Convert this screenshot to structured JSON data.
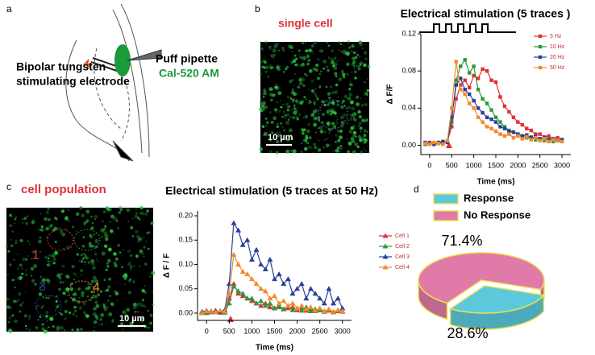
{
  "panels": {
    "a": {
      "label": "a",
      "electrode": [
        "Bipolar tungsten",
        "stimulating electrode"
      ],
      "pipette": "Puff pipette",
      "dye": "Cal-520 AM"
    },
    "b": {
      "label": "b",
      "caption": "single cell",
      "scale": "10 µm"
    },
    "c": {
      "label": "c",
      "caption": "cell population",
      "scale": "10 µm",
      "cells": [
        "1",
        "2",
        "3",
        "4"
      ]
    },
    "d": {
      "label": "d"
    }
  },
  "chart_data": [
    {
      "type": "line",
      "title": "Electrical stimulation (5 traces )",
      "x_label": "Time (ms)",
      "y_label": "Δ F/F",
      "marker": "square",
      "x": [
        -100,
        0,
        100,
        200,
        300,
        400,
        500,
        600,
        700,
        800,
        900,
        1000,
        1100,
        1200,
        1300,
        1400,
        1500,
        1600,
        1700,
        1800,
        1900,
        2000,
        2100,
        2200,
        2300,
        2400,
        2500,
        2600,
        2700,
        2800,
        2900,
        3000
      ],
      "xlim": [
        -200,
        3200
      ],
      "xticks": [
        0,
        500,
        1000,
        1500,
        2000,
        2500,
        3000
      ],
      "ylim": [
        -0.01,
        0.12
      ],
      "yticks": [
        {
          "value": 0,
          "label": "0.00"
        },
        {
          "value": 0.04,
          "label": "0.04"
        },
        {
          "value": 0.08,
          "label": "0.08"
        },
        {
          "value": 0.12,
          "label": "0.12"
        }
      ],
      "series": [
        {
          "name": "5 Hz",
          "color": "#e0303a",
          "values": [
            0.002,
            0.003,
            0.001,
            0.002,
            0.003,
            0.004,
            0.02,
            0.05,
            0.065,
            0.07,
            0.062,
            0.075,
            0.072,
            0.082,
            0.08,
            0.07,
            0.068,
            0.052,
            0.042,
            0.036,
            0.03,
            0.025,
            0.022,
            0.018,
            0.016,
            0.012,
            0.012,
            0.009,
            0.01,
            0.007,
            0.008,
            0.006
          ]
        },
        {
          "name": "10 Hz",
          "color": "#2a9a3a",
          "values": [
            0.001,
            0.002,
            0.002,
            0.003,
            0.002,
            0.004,
            0.025,
            0.07,
            0.085,
            0.092,
            0.078,
            0.085,
            0.06,
            0.05,
            0.045,
            0.038,
            0.03,
            0.025,
            0.02,
            0.016,
            0.014,
            0.012,
            0.01,
            0.008,
            0.009,
            0.006,
            0.007,
            0.005,
            0.006,
            0.004,
            0.005,
            0.004
          ]
        },
        {
          "name": "20 Hz",
          "color": "#2a3f9a",
          "values": [
            0.003,
            0.002,
            0.001,
            0.003,
            0.004,
            0.003,
            0.03,
            0.065,
            0.072,
            0.06,
            0.055,
            0.048,
            0.04,
            0.035,
            0.03,
            0.028,
            0.025,
            0.02,
            0.018,
            0.015,
            0.014,
            0.012,
            0.01,
            0.011,
            0.008,
            0.009,
            0.007,
            0.008,
            0.006,
            0.007,
            0.005,
            0.006
          ]
        },
        {
          "name": "50 Hz",
          "color": "#f28a2a",
          "values": [
            0.002,
            0.001,
            0.003,
            0.002,
            0.001,
            0.005,
            0.04,
            0.09,
            0.06,
            0.055,
            0.045,
            0.04,
            0.03,
            0.025,
            0.02,
            0.018,
            0.015,
            0.012,
            0.01,
            0.012,
            0.008,
            0.01,
            0.007,
            0.009,
            0.006,
            0.008,
            0.005,
            0.007,
            0.004,
            0.006,
            0.005,
            0.004
          ]
        }
      ]
    },
    {
      "type": "line",
      "title": "Electrical stimulation (5 traces at 50 Hz)",
      "x_label": "Time (ms)",
      "y_label": "Δ F / F",
      "marker": "triangle",
      "x": [
        -100,
        0,
        100,
        200,
        300,
        400,
        500,
        600,
        700,
        800,
        900,
        1000,
        1100,
        1200,
        1300,
        1400,
        1500,
        1600,
        1700,
        1800,
        1900,
        2000,
        2100,
        2200,
        2300,
        2400,
        2500,
        2600,
        2700,
        2800,
        2900,
        3000
      ],
      "xlim": [
        -200,
        3200
      ],
      "xticks": [
        0,
        500,
        1000,
        1500,
        2000,
        2500,
        3000
      ],
      "ylim": [
        -0.015,
        0.21
      ],
      "yticks": [
        {
          "value": 0,
          "label": "0.00"
        },
        {
          "value": 0.05,
          "label": "0.05"
        },
        {
          "value": 0.1,
          "label": "0.10"
        },
        {
          "value": 0.15,
          "label": "0.15"
        },
        {
          "value": 0.2,
          "label": "0.20"
        }
      ],
      "series": [
        {
          "name": "Cell 1",
          "color": "#e0303a",
          "values": [
            0,
            0.003,
            0.002,
            0.005,
            0.001,
            0.003,
            0.03,
            0.06,
            0.04,
            0.035,
            0.03,
            0.025,
            0.02,
            0.015,
            0.02,
            0.012,
            0.01,
            0.015,
            0.008,
            0.01,
            0.012,
            0.006,
            0.01,
            0.005,
            0.008,
            0.004,
            0.006,
            0.003,
            0.005,
            0.002,
            0.004,
            0.003
          ]
        },
        {
          "name": "Cell 2",
          "color": "#2a9a3a",
          "values": [
            0.002,
            0,
            0.004,
            0.002,
            0.003,
            0.001,
            0.02,
            0.055,
            0.045,
            0.04,
            0.03,
            0.03,
            0.02,
            0.025,
            0.015,
            0.02,
            0.01,
            0.012,
            0.008,
            0.015,
            0.006,
            0.01,
            0.005,
            0.012,
            0.004,
            0.008,
            0.006,
            0.003,
            0.007,
            0.002,
            0.005,
            0.004
          ]
        },
        {
          "name": "Cell 3",
          "color": "#2a3f9a",
          "values": [
            0.003,
            0.005,
            0.002,
            0.004,
            0.003,
            0.006,
            0.06,
            0.185,
            0.17,
            0.14,
            0.15,
            0.11,
            0.13,
            0.1,
            0.09,
            0.11,
            0.07,
            0.08,
            0.06,
            0.07,
            0.04,
            0.05,
            0.06,
            0.03,
            0.05,
            0.04,
            0.03,
            0.02,
            0.05,
            0.02,
            0.03,
            0.01
          ]
        },
        {
          "name": "Cell 4",
          "color": "#f28a2a",
          "values": [
            0.001,
            0.004,
            0.003,
            0.002,
            0.005,
            0.003,
            0.04,
            0.12,
            0.1,
            0.085,
            0.08,
            0.07,
            0.06,
            0.05,
            0.045,
            0.03,
            0.035,
            0.02,
            0.025,
            0.015,
            0.02,
            0.01,
            0.015,
            0.008,
            0.012,
            0.005,
            0.01,
            0.004,
            0.008,
            0.003,
            0.006,
            0.004
          ]
        }
      ]
    },
    {
      "type": "pie",
      "categories": [
        "Response",
        "No Response"
      ],
      "values": [
        28.6,
        71.4
      ],
      "value_labels": [
        "28.6%",
        "71.4%"
      ],
      "colors": [
        "#5bc8dc",
        "#e07aa8"
      ],
      "edge_color": "#eee050"
    }
  ]
}
